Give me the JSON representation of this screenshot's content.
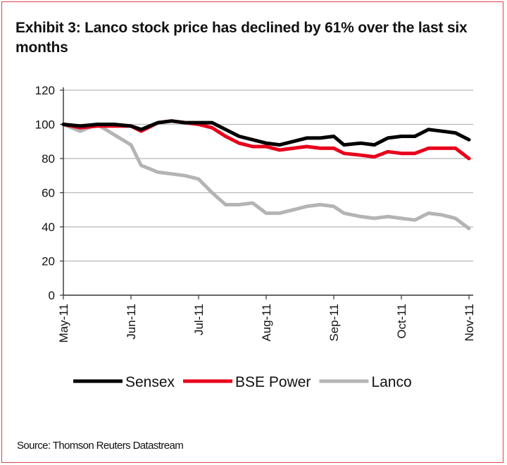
{
  "chart_data": {
    "type": "line",
    "title": "Exhibit 3: Lanco stock price has declined by 61% over the last six months",
    "source": "Source: Thomson Reuters Datastream",
    "xlabel": "",
    "ylabel": "",
    "ylim": [
      0,
      120
    ],
    "yticks": [
      0,
      20,
      40,
      60,
      80,
      100,
      120
    ],
    "xticks": [
      "May-11",
      "Jun-11",
      "Jul-11",
      "Aug-11",
      "Sep-11",
      "Oct-11",
      "Nov-11"
    ],
    "grid": true,
    "legend_position": "bottom",
    "x_months_since_may11": [
      0,
      0.25,
      0.5,
      0.75,
      1.0,
      1.15,
      1.4,
      1.6,
      1.8,
      2.0,
      2.2,
      2.4,
      2.6,
      2.8,
      3.0,
      3.2,
      3.4,
      3.6,
      3.8,
      4.0,
      4.15,
      4.4,
      4.6,
      4.8,
      5.0,
      5.2,
      5.4,
      5.6,
      5.8,
      6.0
    ],
    "series": [
      {
        "name": "Sensex",
        "color": "#000000",
        "values": [
          100,
          99,
          100,
          100,
          99,
          97,
          101,
          102,
          101,
          101,
          101,
          97,
          93,
          91,
          89,
          88,
          90,
          92,
          92,
          93,
          88,
          89,
          88,
          92,
          93,
          93,
          97,
          96,
          95,
          91
        ]
      },
      {
        "name": "BSE Power",
        "color": "#e8001c",
        "values": [
          100,
          98,
          99,
          99,
          99,
          96,
          101,
          102,
          101,
          100,
          98,
          93,
          89,
          87,
          87,
          85,
          86,
          87,
          86,
          86,
          83,
          82,
          81,
          84,
          83,
          83,
          86,
          86,
          86,
          80
        ]
      },
      {
        "name": "Lanco",
        "color": "#b4b4b4",
        "values": [
          100,
          96,
          100,
          94,
          88,
          76,
          72,
          71,
          70,
          68,
          60,
          53,
          53,
          54,
          48,
          48,
          50,
          52,
          53,
          52,
          48,
          46,
          45,
          46,
          45,
          44,
          48,
          47,
          45,
          39
        ]
      }
    ]
  }
}
